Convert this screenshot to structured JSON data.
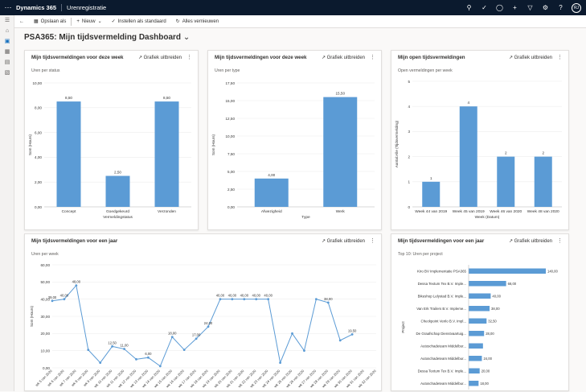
{
  "topbar": {
    "app_name": "Dynamics 365",
    "area": "Urenregistratie",
    "avatar": "RJ"
  },
  "commands": {
    "save_as": "Opslaan als",
    "new": "Nieuw",
    "set_default": "Instellen als standaard",
    "refresh_all": "Alles vernieuwen"
  },
  "page": {
    "title": "PSA365: Mijn tijdsvermelding Dashboard"
  },
  "cards": {
    "status": {
      "title": "Mijn tijdsvermeldingen voor deze week",
      "expand": "Grafiek uitbreiden",
      "subtitle": "Uren per status"
    },
    "type": {
      "title": "Mijn tijdsvermeldingen voor deze week",
      "expand": "Grafiek uitbreiden",
      "subtitle": "Uren per type"
    },
    "open": {
      "title": "Mijn open tijdsvermeldingen",
      "expand": "Grafiek uitbreiden",
      "subtitle": "Open vermeldingen per week"
    },
    "year": {
      "title": "Mijn tijdsvermeldingen voor een jaar",
      "expand": "Grafiek uitbreiden",
      "subtitle": "Uren per week"
    },
    "project": {
      "title": "Mijn tijdsvermeldingen voor een jaar",
      "expand": "Grafiek uitbreiden",
      "subtitle": "Top 10: Uren per project"
    }
  },
  "chart_data": [
    {
      "type": "bar",
      "categories": [
        "Concept",
        "Goedgekeurd",
        "Verzonden"
      ],
      "values": [
        8.5,
        2.5,
        8.5
      ],
      "value_labels": [
        "8,50",
        "2,50",
        "8,50"
      ],
      "ylabel": "Som (Hours)",
      "xlabel": "Vermeldingstatus",
      "ylim": [
        0,
        10
      ],
      "ticks": [
        "0,00",
        "2,00",
        "4,00",
        "6,00",
        "8,00",
        "10,00"
      ],
      "color": "#5b9bd5"
    },
    {
      "type": "bar",
      "categories": [
        "Afwezigheid",
        "Werk"
      ],
      "values": [
        4,
        15.5
      ],
      "value_labels": [
        "4,00",
        "15,50"
      ],
      "ylabel": "Som (Hours)",
      "xlabel": "Type",
      "ylim": [
        0,
        17.5
      ],
      "ticks": [
        "0,00",
        "2,50",
        "5,00",
        "7,50",
        "10,00",
        "12,50",
        "15,00",
        "17,50"
      ],
      "color": "#5b9bd5"
    },
    {
      "type": "bar",
      "categories": [
        "Week 44 van 2019",
        "Week 45 van 2019",
        "Week 46 van 2020",
        "Week 48 van 2020"
      ],
      "values": [
        1,
        4,
        2,
        2
      ],
      "value_labels": [
        "1",
        "4",
        "2",
        "2"
      ],
      "ylabel": "Aantal:Alle (Tijdsvermelding)",
      "xlabel": "Week (Datum)",
      "ylim": [
        0,
        5
      ],
      "ticks": [
        "0",
        "1",
        "2",
        "3",
        "4",
        "5"
      ],
      "color": "#5b9bd5"
    },
    {
      "type": "line",
      "x": [
        "wk 5 van 2020",
        "wk 6 van 2020",
        "wk 7 van 2020",
        "wk 8 van 2020",
        "wk 9 van 2020",
        "wk 10 van 2020",
        "wk 11 van 2020",
        "wk 12 van 2020",
        "wk 13 van 2020",
        "wk 14 van 2020",
        "wk 15 van 2020",
        "wk 16 van 2020",
        "wk 17 van 2020",
        "wk 18 van 2020",
        "wk 19 van 2020",
        "wk 20 van 2020",
        "wk 21 van 2020",
        "wk 22 van 2020",
        "wk 23 van 2020",
        "wk 24 van 2020",
        "wk 25 van 2020",
        "wk 26 van 2020",
        "wk 27 van 2020",
        "wk 28 van 2020",
        "wk 29 van 2020",
        "wk 30 van 2020",
        "wk 31 van 2020",
        "wk 32 van 2020"
      ],
      "values": [
        39,
        40,
        48,
        10.5,
        3,
        12.5,
        11,
        5,
        6,
        1,
        18,
        10.5,
        17,
        24,
        40,
        40,
        40,
        40,
        40,
        3,
        20,
        10,
        40,
        38,
        16,
        19.5,
        null,
        null
      ],
      "value_labels": [
        "39,00",
        "40,00",
        "48,00",
        "",
        "",
        "12,50",
        "11,00",
        "",
        "6,00",
        "",
        "18,00",
        "",
        "17,00",
        "24,00",
        "40,00",
        "40,00",
        "40,00",
        "40,00",
        "40,00",
        "",
        "",
        "",
        "",
        "38,00",
        "",
        "19,50",
        "",
        ""
      ],
      "ylabel": "Som (Hours)",
      "ylim": [
        0,
        60
      ],
      "ticks": [
        "0,00",
        "10,00",
        "20,00",
        "30,00",
        "40,00",
        "50,00",
        "60,00"
      ],
      "color": "#5b9bd5"
    },
    {
      "type": "bar",
      "orientation": "horizontal",
      "categories": [
        "Kiro BV Implementatie PSA365",
        "Dessa Textum Tex B.V. Imple...",
        "Bikeshop Lelystad B.V. Imple...",
        "Van Erk Trailers B.V. Impleme...",
        "Checkpoint Venlo B.V. Impl...",
        "De Graafschap Dienstvaartuig...",
        "Autoschadeteam Middelbur...",
        "Autoschadeteam Middelbur...",
        "Dessa Textum Tex B.V. Imple...",
        "Autoschadeteam Middelbur..."
      ],
      "values": [
        140,
        68,
        40,
        38,
        32.5,
        28,
        26,
        24,
        20,
        18
      ],
      "value_labels": [
        "140,00",
        "68,00",
        "40,00",
        "38,00",
        "32,50",
        "28,00",
        "",
        "24,00",
        "20,00",
        "18,00"
      ],
      "ylabel": "Project",
      "color": "#5b9bd5"
    }
  ]
}
